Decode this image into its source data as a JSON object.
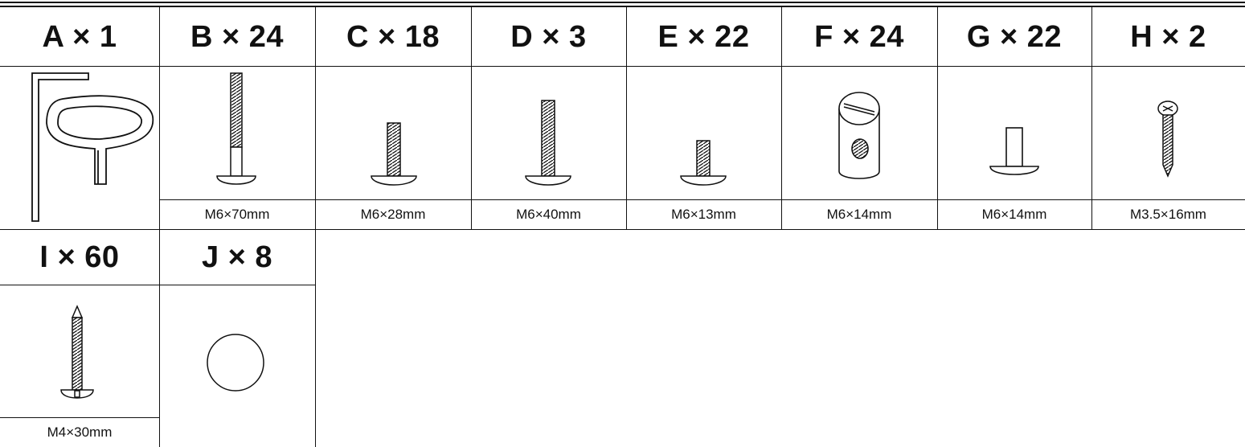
{
  "parts_row1": [
    {
      "letter": "A",
      "heading": "A × 1",
      "icon": "hex-key-icon",
      "size": ""
    },
    {
      "letter": "B",
      "heading": "B × 24",
      "icon": "long-bolt-icon",
      "size": "M6×70mm"
    },
    {
      "letter": "C",
      "heading": "C × 18",
      "icon": "bolt-icon",
      "size": "M6×28mm"
    },
    {
      "letter": "D",
      "heading": "D × 3",
      "icon": "bolt-icon",
      "size": "M6×40mm"
    },
    {
      "letter": "E",
      "heading": "E × 22",
      "icon": "short-bolt-icon",
      "size": "M6×13mm"
    },
    {
      "letter": "F",
      "heading": "F × 24",
      "icon": "barrel-nut-icon",
      "size": "M6×14mm"
    },
    {
      "letter": "G",
      "heading": "G × 22",
      "icon": "connector-nut-icon",
      "size": "M6×14mm"
    },
    {
      "letter": "H",
      "heading": "H × 2",
      "icon": "wood-screw-icon",
      "size": "M3.5×16mm"
    }
  ],
  "parts_row2": [
    {
      "letter": "I",
      "heading": "I × 60",
      "icon": "pointed-screw-icon",
      "size": "M4×30mm"
    },
    {
      "letter": "J",
      "heading": "J × 8",
      "icon": "cap-disc-icon",
      "size": ""
    }
  ]
}
